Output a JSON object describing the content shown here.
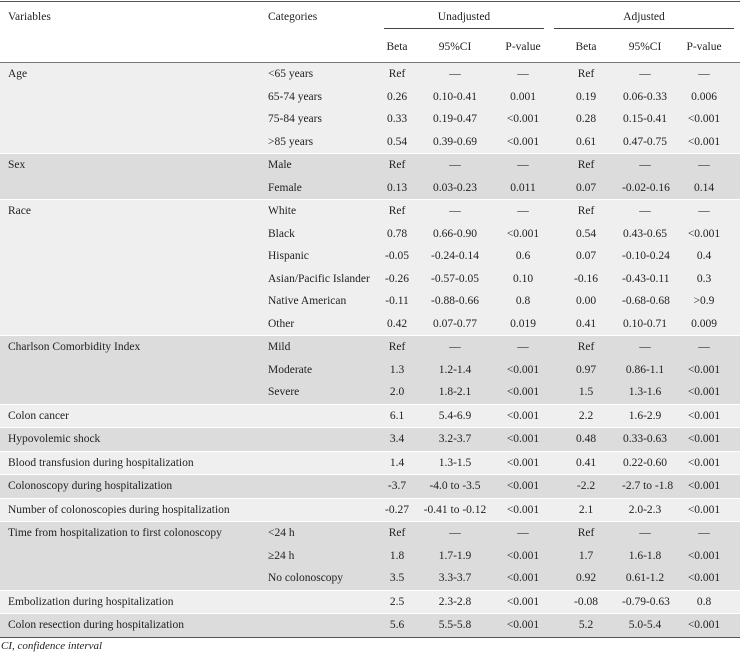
{
  "header": {
    "variables": "Variables",
    "categories": "Categories",
    "unadjusted": "Unadjusted",
    "adjusted": "Adjusted",
    "beta": "Beta",
    "ci": "95%CI",
    "p": "P-value"
  },
  "groups": [
    {
      "variable": "Age",
      "rows": [
        {
          "category": "<65 years",
          "u": [
            "Ref",
            "—",
            "—"
          ],
          "a": [
            "Ref",
            "—",
            "—"
          ]
        },
        {
          "category": "65-74 years",
          "u": [
            "0.26",
            "0.10-0.41",
            "0.001"
          ],
          "a": [
            "0.19",
            "0.06-0.33",
            "0.006"
          ]
        },
        {
          "category": "75-84 years",
          "u": [
            "0.33",
            "0.19-0.47",
            "<0.001"
          ],
          "a": [
            "0.28",
            "0.15-0.41",
            "<0.001"
          ]
        },
        {
          "category": ">85 years",
          "u": [
            "0.54",
            "0.39-0.69",
            "<0.001"
          ],
          "a": [
            "0.61",
            "0.47-0.75",
            "<0.001"
          ]
        }
      ]
    },
    {
      "variable": "Sex",
      "rows": [
        {
          "category": "Male",
          "u": [
            "Ref",
            "—",
            "—"
          ],
          "a": [
            "Ref",
            "—",
            "—"
          ]
        },
        {
          "category": "Female",
          "u": [
            "0.13",
            "0.03-0.23",
            "0.011"
          ],
          "a": [
            "0.07",
            "-0.02-0.16",
            "0.14"
          ]
        }
      ]
    },
    {
      "variable": "Race",
      "rows": [
        {
          "category": "White",
          "u": [
            "Ref",
            "—",
            "—"
          ],
          "a": [
            "Ref",
            "—",
            "—"
          ]
        },
        {
          "category": "Black",
          "u": [
            "0.78",
            "0.66-0.90",
            "<0.001"
          ],
          "a": [
            "0.54",
            "0.43-0.65",
            "<0.001"
          ]
        },
        {
          "category": "Hispanic",
          "u": [
            "-0.05",
            "-0.24-0.14",
            "0.6"
          ],
          "a": [
            "0.07",
            "-0.10-0.24",
            "0.4"
          ]
        },
        {
          "category": "Asian/Pacific Islander",
          "u": [
            "-0.26",
            "-0.57-0.05",
            "0.10"
          ],
          "a": [
            "-0.16",
            "-0.43-0.11",
            "0.3"
          ]
        },
        {
          "category": "Native American",
          "u": [
            "-0.11",
            "-0.88-0.66",
            "0.8"
          ],
          "a": [
            "0.00",
            "-0.68-0.68",
            ">0.9"
          ]
        },
        {
          "category": "Other",
          "u": [
            "0.42",
            "0.07-0.77",
            "0.019"
          ],
          "a": [
            "0.41",
            "0.10-0.71",
            "0.009"
          ]
        }
      ]
    },
    {
      "variable": "Charlson Comorbidity Index",
      "rows": [
        {
          "category": "Mild",
          "u": [
            "Ref",
            "—",
            "—"
          ],
          "a": [
            "Ref",
            "—",
            "—"
          ]
        },
        {
          "category": "Moderate",
          "u": [
            "1.3",
            "1.2-1.4",
            "<0.001"
          ],
          "a": [
            "0.97",
            "0.86-1.1",
            "<0.001"
          ]
        },
        {
          "category": "Severe",
          "u": [
            "2.0",
            "1.8-2.1",
            "<0.001"
          ],
          "a": [
            "1.5",
            "1.3-1.6",
            "<0.001"
          ]
        }
      ]
    },
    {
      "variable": "Colon cancer",
      "rows": [
        {
          "category": "",
          "u": [
            "6.1",
            "5.4-6.9",
            "<0.001"
          ],
          "a": [
            "2.2",
            "1.6-2.9",
            "<0.001"
          ]
        }
      ]
    },
    {
      "variable": "Hypovolemic shock",
      "rows": [
        {
          "category": "",
          "u": [
            "3.4",
            "3.2-3.7",
            "<0.001"
          ],
          "a": [
            "0.48",
            "0.33-0.63",
            "<0.001"
          ]
        }
      ]
    },
    {
      "variable": "Blood transfusion during hospitalization",
      "rows": [
        {
          "category": "",
          "u": [
            "1.4",
            "1.3-1.5",
            "<0.001"
          ],
          "a": [
            "0.41",
            "0.22-0.60",
            "<0.001"
          ]
        }
      ]
    },
    {
      "variable": "Colonoscopy during hospitalization",
      "rows": [
        {
          "category": "",
          "u": [
            "-3.7",
            "-4.0 to -3.5",
            "<0.001"
          ],
          "a": [
            "-2.2",
            "-2.7 to -1.8",
            "<0.001"
          ]
        }
      ]
    },
    {
      "variable": "Number of colonoscopies during hospitalization",
      "rows": [
        {
          "category": "",
          "u": [
            "-0.27",
            "-0.41 to -0.12",
            "<0.001"
          ],
          "a": [
            "2.1",
            "2.0-2.3",
            "<0.001"
          ]
        }
      ]
    },
    {
      "variable": "Time from hospitalization to first colonoscopy",
      "rows": [
        {
          "category": "<24 h",
          "u": [
            "Ref",
            "—",
            "—"
          ],
          "a": [
            "Ref",
            "—",
            "—"
          ]
        },
        {
          "category": "≥24 h",
          "u": [
            "1.8",
            "1.7-1.9",
            "<0.001"
          ],
          "a": [
            "1.7",
            "1.6-1.8",
            "<0.001"
          ]
        },
        {
          "category": "No colonoscopy",
          "u": [
            "3.5",
            "3.3-3.7",
            "<0.001"
          ],
          "a": [
            "0.92",
            "0.61-1.2",
            "<0.001"
          ]
        }
      ]
    },
    {
      "variable": "Embolization during hospitalization",
      "rows": [
        {
          "category": "",
          "u": [
            "2.5",
            "2.3-2.8",
            "<0.001"
          ],
          "a": [
            "-0.08",
            "-0.79-0.63",
            "0.8"
          ]
        }
      ]
    },
    {
      "variable": "Colon resection during hospitalization",
      "rows": [
        {
          "category": "",
          "u": [
            "5.6",
            "5.5-5.8",
            "<0.001"
          ],
          "a": [
            "5.2",
            "5.0-5.4",
            "<0.001"
          ]
        }
      ]
    }
  ],
  "footnote": "CI, confidence interval"
}
